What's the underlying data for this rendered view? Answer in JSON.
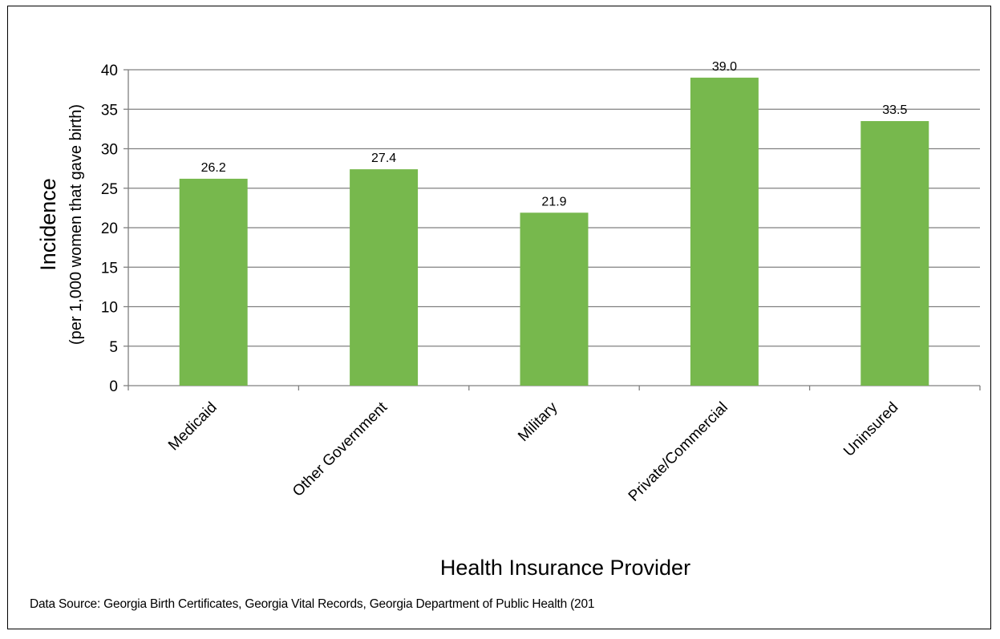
{
  "chart_data": {
    "type": "bar",
    "categories": [
      "Medicaid",
      "Other Government",
      "Military",
      "Private/Commercial",
      "Uninsured"
    ],
    "values": [
      26.2,
      27.4,
      21.9,
      39.0,
      33.5
    ],
    "data_labels": [
      "26.2",
      "27.4",
      "21.9",
      "39.0",
      "33.5"
    ],
    "xlabel": "Health Insurance Provider",
    "ylabel": "Incidence",
    "ylabel_sub": "(per 1,000 women that gave birth)",
    "ylim": [
      0,
      40
    ],
    "yticks": [
      0,
      5,
      10,
      15,
      20,
      25,
      30,
      35,
      40
    ],
    "grid": true,
    "bar_color": "#77b84d",
    "grid_color": "#808080"
  },
  "source_note": "Data Source:  Georgia Birth  Certificates, Georgia Vital Records, Georgia Department of Public Health (201"
}
